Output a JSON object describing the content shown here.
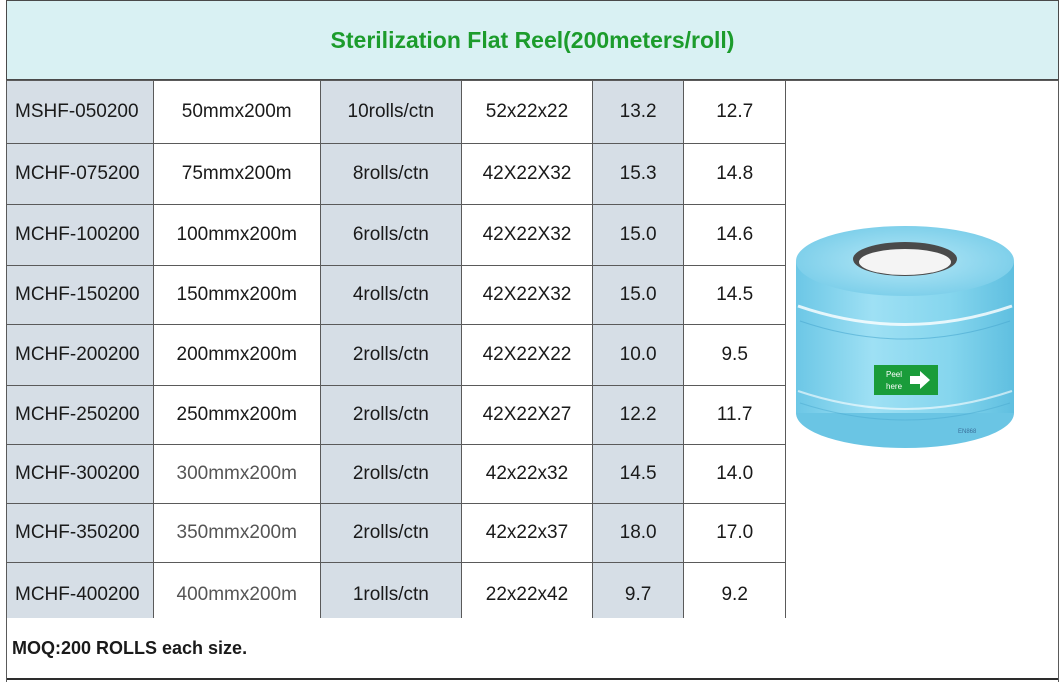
{
  "title": "Sterilization Flat Reel(200meters/roll)",
  "rows": [
    {
      "model": "MSHF-050200",
      "size": "50mmx200m",
      "pack": "10rolls/ctn",
      "carton": "52x22x22",
      "gw": "13.2",
      "nw": "12.7"
    },
    {
      "model": "MCHF-075200",
      "size": "75mmx200m",
      "pack": "8rolls/ctn",
      "carton": "42X22X32",
      "gw": "15.3",
      "nw": "14.8"
    },
    {
      "model": "MCHF-100200",
      "size": "100mmx200m",
      "pack": "6rolls/ctn",
      "carton": "42X22X32",
      "gw": "15.0",
      "nw": "14.6"
    },
    {
      "model": "MCHF-150200",
      "size": "150mmx200m",
      "pack": "4rolls/ctn",
      "carton": "42X22X32",
      "gw": "15.0",
      "nw": "14.5"
    },
    {
      "model": "MCHF-200200",
      "size": "200mmx200m",
      "pack": "2rolls/ctn",
      "carton": "42X22X22",
      "gw": "10.0",
      "nw": "9.5"
    },
    {
      "model": "MCHF-250200",
      "size": "250mmx200m",
      "pack": "2rolls/ctn",
      "carton": "42X22X27",
      "gw": "12.2",
      "nw": "11.7"
    },
    {
      "model": "MCHF-300200",
      "size": "300mmx200m",
      "pack": "2rolls/ctn",
      "carton": "42x22x32",
      "gw": "14.5",
      "nw": "14.0"
    },
    {
      "model": "MCHF-350200",
      "size": "350mmx200m",
      "pack": "2rolls/ctn",
      "carton": "42x22x37",
      "gw": "18.0",
      "nw": "17.0"
    },
    {
      "model": "MCHF-400200",
      "size": "400mmx200m",
      "pack": "1rolls/ctn",
      "carton": "22x22x42",
      "gw": "9.7",
      "nw": "9.2"
    }
  ],
  "product_image": {
    "label_line1": "Peel",
    "label_line2": "here",
    "print_text": "EN868",
    "icon": "arrow-right-icon",
    "roll_color": "#7fd3ec",
    "label_color": "#1a9c3a"
  },
  "footer": "MOQ:200 ROLLS each size.",
  "colors": {
    "title_bg": "#d9f1f3",
    "title_text": "#1c9c2c",
    "cell_shade": "#d6dee6"
  }
}
